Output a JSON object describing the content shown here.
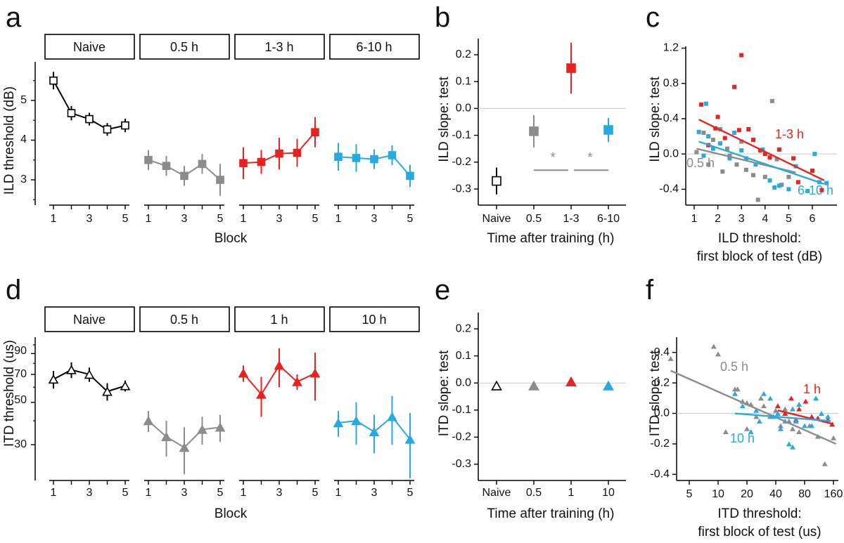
{
  "colors": {
    "black": "#000000",
    "gray": "#8c8c8c",
    "red": "#e8231f",
    "blue": "#27aae1",
    "zero_line": "#cccccc",
    "dark_gray": "#666666"
  },
  "panel_labels": [
    "a",
    "b",
    "c",
    "d",
    "e",
    "f"
  ],
  "chart_data": [
    {
      "id": "a",
      "type": "line",
      "ylabel": "ILD threshold (dB)",
      "xlabel": "Block",
      "yticks": [
        "3",
        "4",
        "5"
      ],
      "ylim": [
        2.5,
        5.8
      ],
      "xtick_labels": [
        "1",
        "3",
        "5"
      ],
      "marker": "square",
      "groups": [
        {
          "header": "Naive",
          "color": "black",
          "filled": false,
          "x": [
            1,
            2,
            3,
            4,
            5
          ],
          "y": [
            5.5,
            4.68,
            4.53,
            4.27,
            4.37
          ],
          "err": [
            0.22,
            0.18,
            0.16,
            0.16,
            0.17
          ]
        },
        {
          "header": "0.5 h",
          "color": "gray",
          "filled": true,
          "x": [
            1,
            2,
            3,
            4,
            5
          ],
          "y": [
            3.5,
            3.35,
            3.1,
            3.4,
            3.0
          ],
          "err": [
            0.25,
            0.25,
            0.25,
            0.25,
            0.4
          ]
        },
        {
          "header": "1-3 h",
          "color": "red",
          "filled": true,
          "x": [
            1,
            2,
            3,
            4,
            5
          ],
          "y": [
            3.42,
            3.45,
            3.66,
            3.68,
            4.2
          ],
          "err": [
            0.4,
            0.3,
            0.4,
            0.35,
            0.38
          ]
        },
        {
          "header": "6-10 h",
          "color": "blue",
          "filled": true,
          "x": [
            1,
            2,
            3,
            4,
            5
          ],
          "y": [
            3.58,
            3.55,
            3.52,
            3.62,
            3.1
          ],
          "err": [
            0.35,
            0.35,
            0.25,
            0.25,
            0.28
          ]
        }
      ]
    },
    {
      "id": "b",
      "type": "scatter",
      "ylabel": "ILD slope: test",
      "xlabel": "Time after training (h)",
      "categories": [
        "Naive",
        "0.5",
        "1-3",
        "6-10"
      ],
      "ylim": [
        -0.36,
        0.26
      ],
      "yticks": [
        "-0.3",
        "-0.2",
        "-0.1",
        "0.0",
        "0.1",
        "0.2"
      ],
      "values": [
        -0.27,
        -0.085,
        0.15,
        -0.08
      ],
      "err": [
        0.05,
        0.06,
        0.095,
        0.045
      ],
      "colors": [
        "black",
        "gray",
        "red",
        "blue"
      ],
      "filled": [
        false,
        true,
        true,
        true
      ],
      "significance": [
        "*",
        "*"
      ]
    },
    {
      "id": "c",
      "type": "scatter",
      "ylabel": "ILD slope: test",
      "xlabel_lines": [
        "ILD threshold:",
        "first block of test (dB)"
      ],
      "xlim": [
        0.8,
        6.7
      ],
      "ylim": [
        -0.58,
        1.22
      ],
      "xticks": [
        "1",
        "2",
        "3",
        "4",
        "5",
        "6"
      ],
      "yticks": [
        "-0.4",
        "0.0",
        "0.4",
        "0.8",
        "1.2"
      ],
      "series": [
        {
          "name": "1-3 h",
          "color": "red",
          "points": [
            [
              1.3,
              0.56
            ],
            [
              1.9,
              0.29
            ],
            [
              2.0,
              0.42
            ],
            [
              2.3,
              0.18
            ],
            [
              2.7,
              0.76
            ],
            [
              2.9,
              0.27
            ],
            [
              3.0,
              1.12
            ],
            [
              3.3,
              0.28
            ],
            [
              3.5,
              0.16
            ],
            [
              3.8,
              0.04
            ],
            [
              4.0,
              0.0
            ],
            [
              4.2,
              -0.04
            ],
            [
              4.6,
              0.05
            ],
            [
              5.2,
              -0.05
            ],
            [
              5.4,
              -0.32
            ],
            [
              6.0,
              -0.19
            ],
            [
              6.4,
              -0.41
            ],
            [
              1.6,
              0.1
            ]
          ],
          "fit": [
            [
              1.2,
              0.39
            ],
            [
              6.5,
              -0.3
            ]
          ]
        },
        {
          "name": "0.5 h",
          "color": "gray",
          "points": [
            [
              1.1,
              0.02
            ],
            [
              1.4,
              0.24
            ],
            [
              1.8,
              0.16
            ],
            [
              2.1,
              0.28
            ],
            [
              2.4,
              0.06
            ],
            [
              2.5,
              -0.02
            ],
            [
              2.8,
              -0.12
            ],
            [
              3.0,
              0.14
            ],
            [
              3.2,
              -0.18
            ],
            [
              3.5,
              -0.24
            ],
            [
              3.7,
              -0.52
            ],
            [
              4.0,
              -0.26
            ],
            [
              4.3,
              0.6
            ],
            [
              4.5,
              -0.06
            ],
            [
              4.7,
              -0.35
            ],
            [
              5.0,
              -0.26
            ],
            [
              1.6,
              -0.12
            ],
            [
              2.2,
              -0.2
            ]
          ],
          "fit": [
            [
              1.1,
              0.06
            ],
            [
              5.3,
              -0.21
            ]
          ]
        },
        {
          "name": "6-10 h",
          "color": "blue",
          "points": [
            [
              1.2,
              0.25
            ],
            [
              1.5,
              0.57
            ],
            [
              1.6,
              0.2
            ],
            [
              1.8,
              0.06
            ],
            [
              2.1,
              0.12
            ],
            [
              2.5,
              -0.05
            ],
            [
              2.7,
              0.24
            ],
            [
              3.0,
              0.04
            ],
            [
              3.2,
              -0.05
            ],
            [
              3.6,
              -0.12
            ],
            [
              3.9,
              0.05
            ],
            [
              4.2,
              -0.3
            ],
            [
              4.4,
              -0.38
            ],
            [
              4.6,
              -0.36
            ],
            [
              5.0,
              -0.4
            ],
            [
              5.3,
              -0.14
            ],
            [
              5.8,
              -0.42
            ],
            [
              6.1,
              0.0
            ],
            [
              6.3,
              -0.32
            ],
            [
              6.6,
              -0.33
            ],
            [
              1.4,
              -0.02
            ]
          ],
          "fit": [
            [
              1.2,
              0.14
            ],
            [
              6.5,
              -0.34
            ]
          ]
        }
      ]
    },
    {
      "id": "d",
      "type": "line",
      "ylabel": "ITD threshold (us)",
      "xlabel": "Block",
      "yticks": [
        "30",
        "50",
        "70",
        "90"
      ],
      "ylim": [
        20,
        105
      ],
      "xtick_labels": [
        "1",
        "3",
        "5"
      ],
      "marker": "triangle",
      "groups": [
        {
          "header": "Naive",
          "color": "black",
          "filled": false,
          "x": [
            1,
            2,
            3,
            4,
            5
          ],
          "y": [
            66,
            74,
            70,
            57,
            61
          ],
          "err": [
            7,
            7,
            6,
            6,
            4
          ]
        },
        {
          "header": "0.5 h",
          "color": "gray",
          "filled": true,
          "x": [
            1,
            2,
            3,
            4,
            5
          ],
          "y": [
            40,
            33,
            29,
            36,
            37
          ],
          "err": [
            5,
            7,
            8,
            6,
            6
          ]
        },
        {
          "header": "1 h",
          "color": "red",
          "filled": true,
          "x": [
            1,
            2,
            3,
            4,
            5
          ],
          "y": [
            71,
            55,
            78,
            64,
            71
          ],
          "err": [
            7,
            13,
            18,
            6,
            20
          ]
        },
        {
          "header": "10 h",
          "color": "blue",
          "filled": true,
          "x": [
            1,
            2,
            3,
            4,
            5
          ],
          "y": [
            39,
            40,
            35,
            42,
            32
          ],
          "err": [
            6,
            10,
            8,
            12,
            12
          ]
        }
      ]
    },
    {
      "id": "e",
      "type": "scatter",
      "ylabel": "ITD slope: test",
      "xlabel": "Time after training (h)",
      "categories": [
        "Naive",
        "0.5",
        "1",
        "10"
      ],
      "ylim": [
        -0.36,
        0.26
      ],
      "yticks": [
        "-0.3",
        "-0.2",
        "-0.1",
        "0.0",
        "0.1",
        "0.2"
      ],
      "values": [
        -0.01,
        -0.01,
        0.005,
        -0.01
      ],
      "err": [
        0.0,
        0.015,
        0.015,
        0.015
      ],
      "colors": [
        "black",
        "gray",
        "red",
        "blue"
      ],
      "filled": [
        false,
        true,
        true,
        true
      ]
    },
    {
      "id": "f",
      "type": "scatter",
      "ylabel": "ITD slope: test",
      "xlabel_lines": [
        "ITD threshold:",
        "first block of test (us)"
      ],
      "xscale": "log",
      "xlim": [
        2.8,
        190
      ],
      "ylim": [
        -0.44,
        0.5
      ],
      "xticks": [
        "5",
        "10",
        "20",
        "40",
        "80",
        "160"
      ],
      "yticks": [
        "-0.4",
        "-0.2",
        "0.0",
        "0.2",
        "0.4"
      ],
      "series": [
        {
          "name": "0.5 h",
          "color": "gray",
          "points": [
            [
              3.2,
              0.36
            ],
            [
              9,
              0.44
            ],
            [
              10,
              0.39
            ],
            [
              12,
              -0.12
            ],
            [
              15,
              0.16
            ],
            [
              18,
              0.08
            ],
            [
              20,
              0.07
            ],
            [
              22,
              0.06
            ],
            [
              25,
              -0.02
            ],
            [
              28,
              0.1
            ],
            [
              30,
              0.05
            ],
            [
              35,
              -0.02
            ],
            [
              40,
              0.02
            ],
            [
              45,
              -0.08
            ],
            [
              50,
              0.03
            ],
            [
              60,
              -0.1
            ],
            [
              70,
              -0.12
            ],
            [
              90,
              -0.08
            ],
            [
              110,
              -0.15
            ],
            [
              130,
              -0.33
            ],
            [
              160,
              -0.16
            ],
            [
              16,
              0.16
            ],
            [
              20,
              -0.1
            ],
            [
              55,
              -0.05
            ]
          ],
          "fit": [
            [
              3.2,
              0.28
            ],
            [
              170,
              -0.2
            ]
          ]
        },
        {
          "name": "1 h",
          "color": "red",
          "points": [
            [
              42,
              0.05
            ],
            [
              50,
              0.0
            ],
            [
              58,
              0.1
            ],
            [
              70,
              0.03
            ],
            [
              82,
              0.08
            ],
            [
              95,
              -0.02
            ],
            [
              110,
              -0.03
            ],
            [
              140,
              -0.04
            ],
            [
              155,
              -0.07
            ],
            [
              65,
              -0.04
            ]
          ],
          "fit": [
            [
              42,
              0.02
            ],
            [
              160,
              -0.07
            ]
          ]
        },
        {
          "name": "10 h",
          "color": "blue",
          "points": [
            [
              15,
              0.13
            ],
            [
              18,
              0.05
            ],
            [
              22,
              -0.12
            ],
            [
              25,
              0.02
            ],
            [
              27,
              -0.05
            ],
            [
              30,
              0.13
            ],
            [
              35,
              0.1
            ],
            [
              38,
              -0.02
            ],
            [
              42,
              0.0
            ],
            [
              50,
              -0.05
            ],
            [
              55,
              -0.2
            ],
            [
              60,
              -0.22
            ],
            [
              65,
              -0.05
            ],
            [
              70,
              0.06
            ],
            [
              80,
              -0.08
            ],
            [
              95,
              -0.08
            ],
            [
              105,
              0.1
            ],
            [
              120,
              0.0
            ],
            [
              140,
              -0.02
            ],
            [
              60,
              0.03
            ],
            [
              45,
              -0.1
            ]
          ],
          "fit": [
            [
              15,
              0.0
            ],
            [
              150,
              -0.05
            ]
          ]
        }
      ]
    }
  ]
}
